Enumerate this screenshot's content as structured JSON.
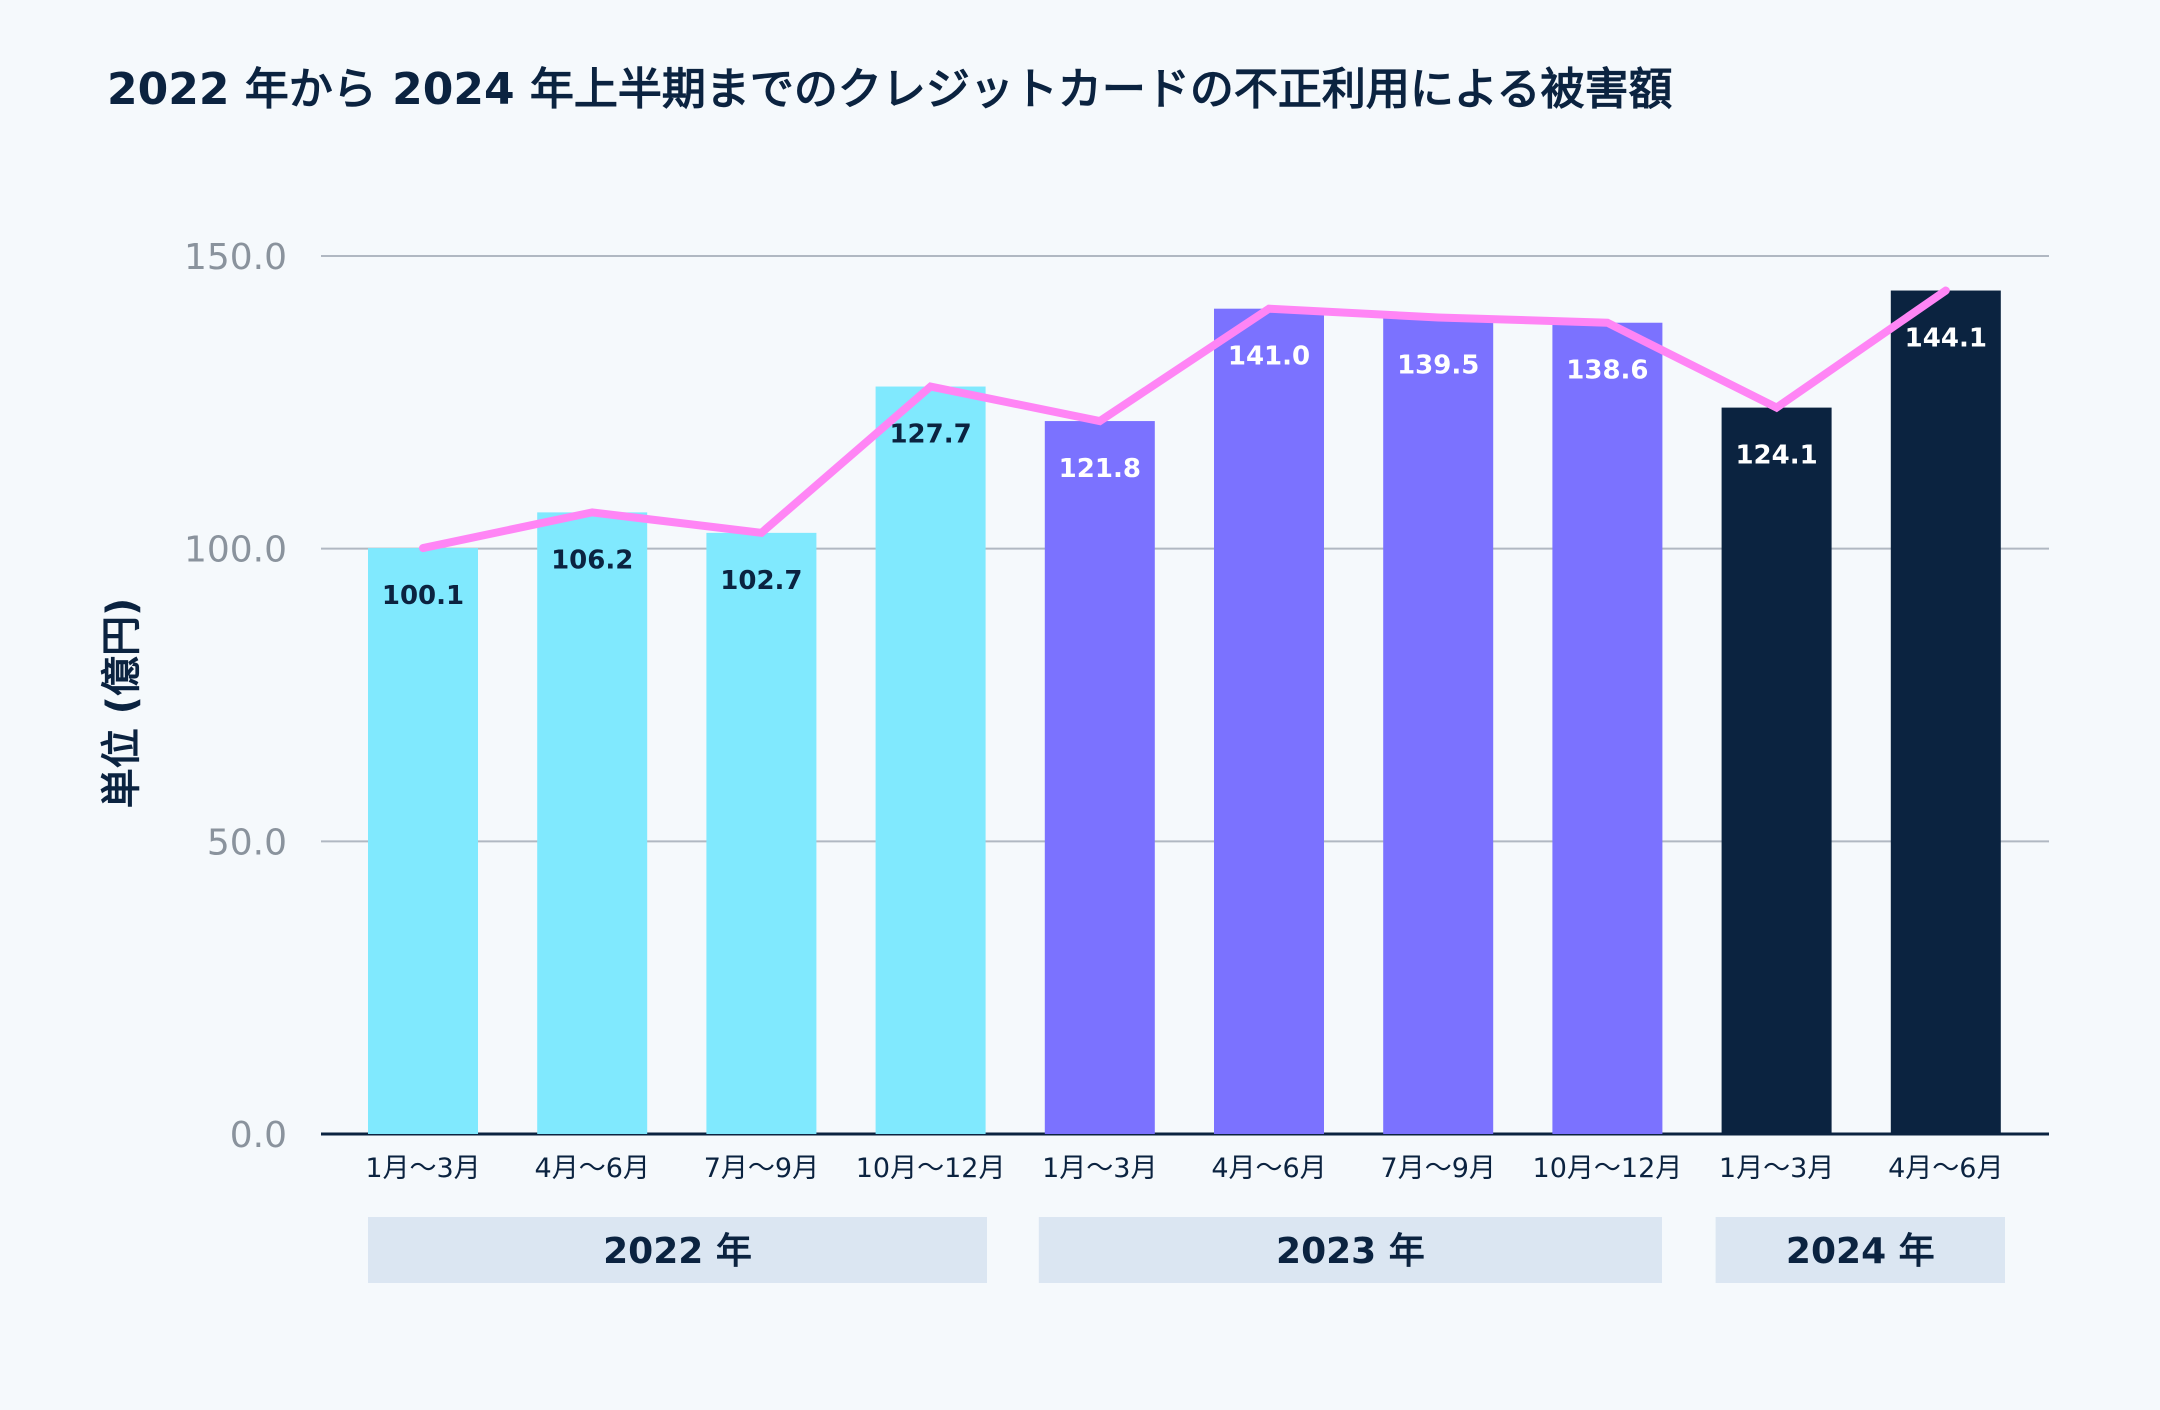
{
  "chart_data": {
    "type": "bar",
    "title": "2022 年から 2024 年上半期までのクレジットカードの不正利用による被害額",
    "ylabel": "単位 (億円)",
    "xlabel": "",
    "ylim": [
      0,
      150
    ],
    "yticks": [
      "0.0",
      "50.0",
      "100.0",
      "150.0"
    ],
    "ytick_values": [
      0,
      50,
      100,
      150
    ],
    "grid": true,
    "categories": [
      "1月〜3月",
      "4月〜6月",
      "7月〜9月",
      "10月〜12月",
      "1月〜3月",
      "4月〜6月",
      "7月〜9月",
      "10月〜12月",
      "1月〜3月",
      "4月〜6月"
    ],
    "values": [
      100.1,
      106.2,
      102.7,
      127.7,
      121.8,
      141.0,
      139.5,
      138.6,
      124.1,
      144.1
    ],
    "data_labels": [
      "100.1",
      "106.2",
      "102.7",
      "127.7",
      "121.8",
      "141.0",
      "139.5",
      "138.6",
      "124.1",
      "144.1"
    ],
    "groups": [
      {
        "label": "2022 年",
        "start": 0,
        "end": 3,
        "color": "#80e9fe",
        "label_color": "#0b2340"
      },
      {
        "label": "2023 年",
        "start": 4,
        "end": 7,
        "color": "#7b72ff",
        "label_color": "#ffffff"
      },
      {
        "label": "2024 年",
        "start": 8,
        "end": 9,
        "color": "#0b2340",
        "label_color": "#ffffff"
      }
    ],
    "line_overlay": {
      "values": [
        100.1,
        106.2,
        102.7,
        127.7,
        121.8,
        141.0,
        139.5,
        138.6,
        124.1,
        144.1
      ],
      "color": "#ff85f5"
    },
    "colors": {
      "background": "#f5f9fc",
      "grid": "#b0b8c2",
      "axis": "#0b2340",
      "band": "#dbe6f2"
    }
  }
}
